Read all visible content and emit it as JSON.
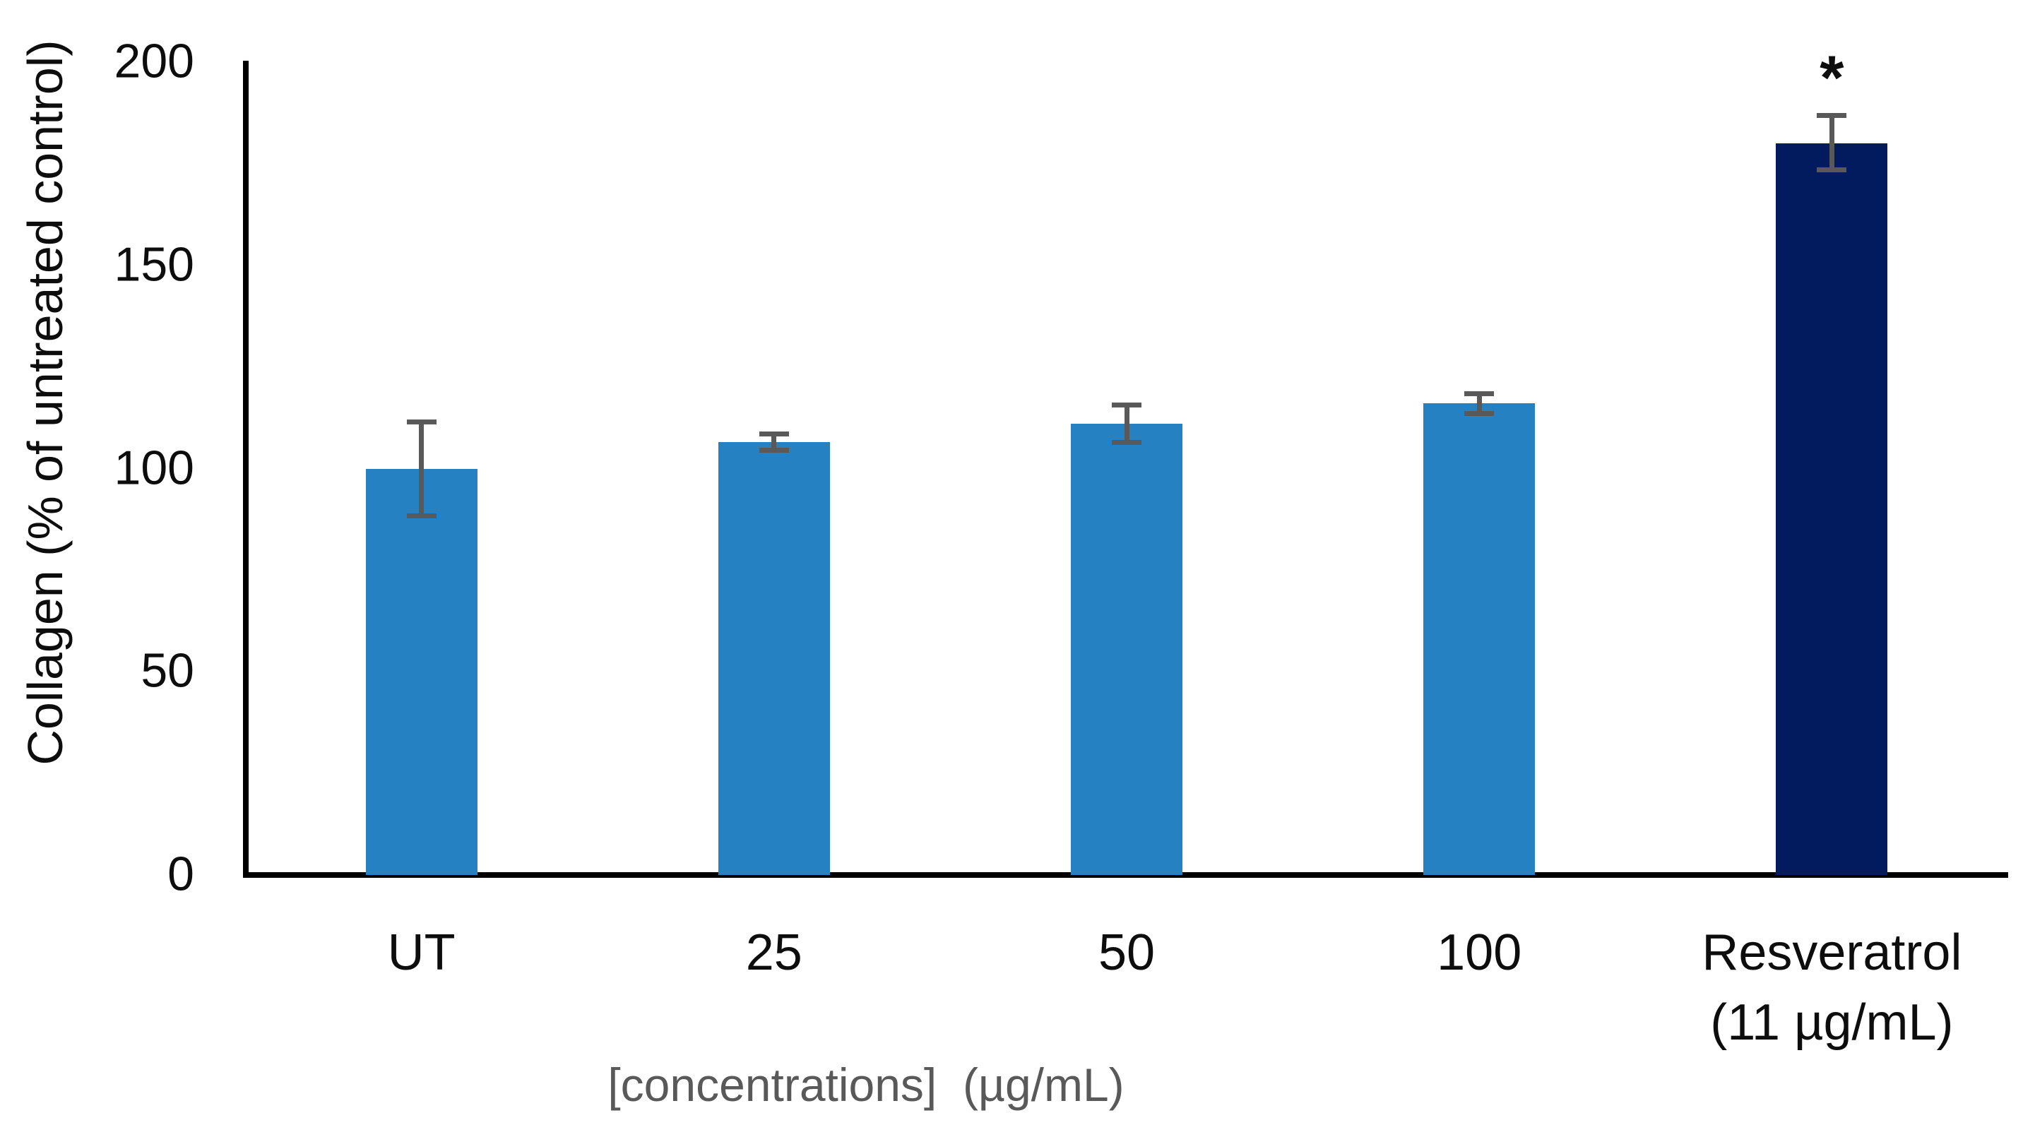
{
  "chart_data": {
    "type": "bar",
    "title": "",
    "categories": [
      "UT",
      "25",
      "50",
      "100",
      "Resveratrol\n(11 µg/mL)"
    ],
    "values": [
      100,
      106.5,
      111,
      116,
      180
    ],
    "errors_plus": [
      11.5,
      2,
      4.7,
      2.4,
      6.8
    ],
    "errors_minus": [
      11.7,
      2,
      4.5,
      2.4,
      6.5
    ],
    "bar_colors": [
      "#2581C1",
      "#2581C1",
      "#2581C1",
      "#2581C1",
      "#021A5E"
    ],
    "annotations": [
      {
        "category_index": 4,
        "text": "*"
      }
    ],
    "xlabel": "[concentrations]  (µg/mL)",
    "ylabel": "Collagen (% of untreated control)",
    "ylim": [
      0,
      200
    ],
    "yticks": [
      0,
      50,
      100,
      150,
      200
    ],
    "grid": false,
    "legend_position": "none"
  },
  "colors": {
    "bar_blue": "#2581C1",
    "bar_navy": "#021A5E",
    "error_bar": "#595959",
    "axis_line": "#000000",
    "x_axis_title_gray": "#595959",
    "tick_label": "#0d0d0d"
  }
}
